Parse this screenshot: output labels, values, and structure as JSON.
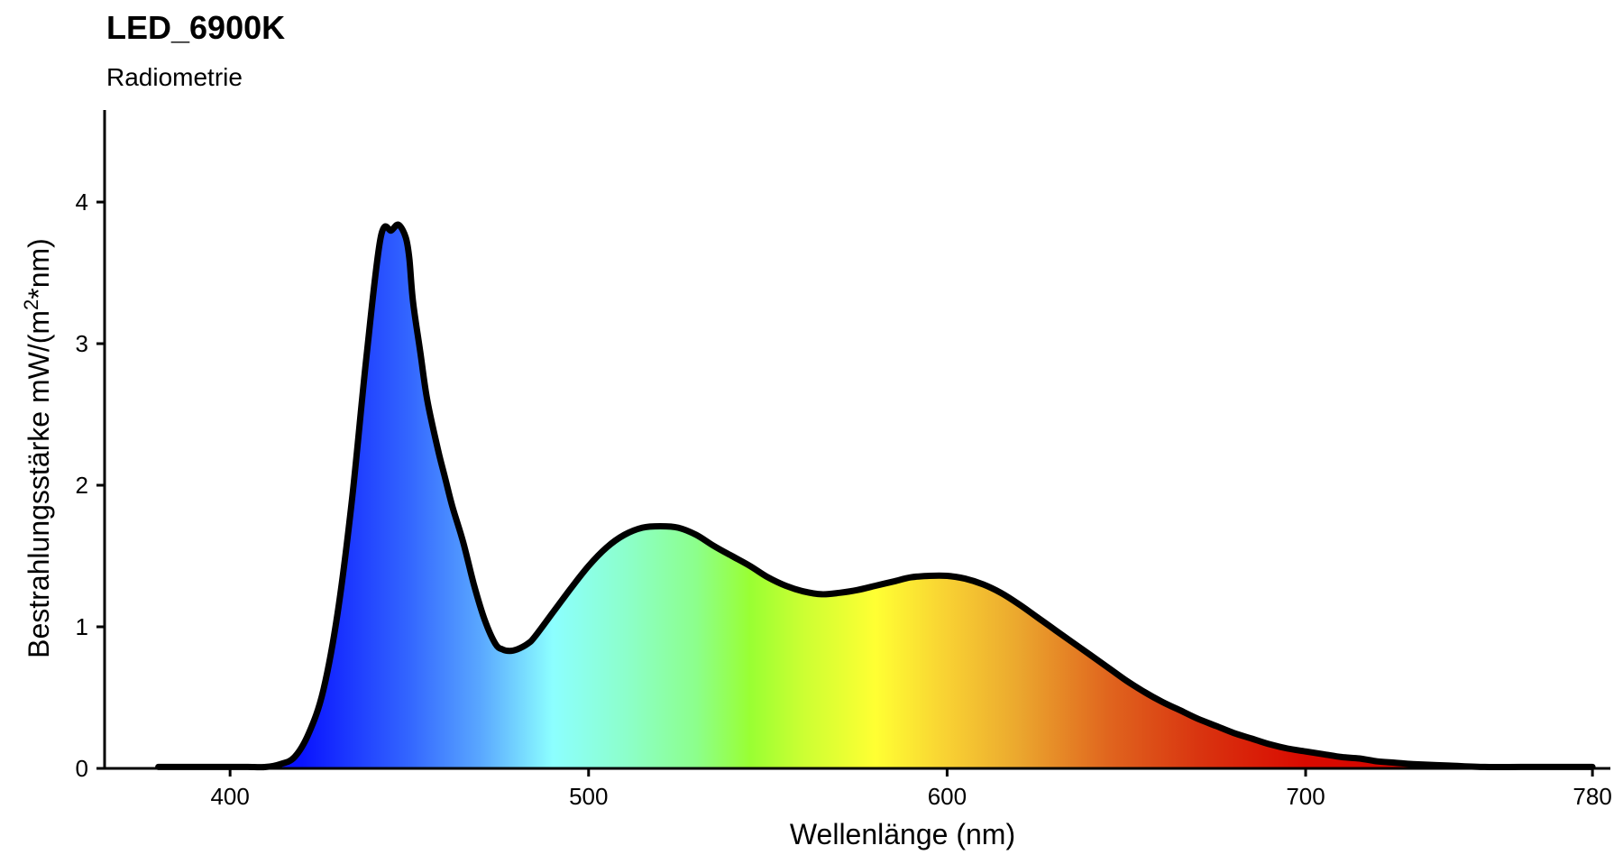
{
  "title": "LED_6900K",
  "subtitle": "Radiometrie",
  "chart_data": {
    "type": "area",
    "title": "LED_6900K",
    "subtitle": "Radiometrie",
    "xlabel": "Wellenlänge (nm)",
    "ylabel_main": "Bestrahlungsstärke  mW/(m",
    "ylabel_sup": "2",
    "ylabel_tail": "*nm)",
    "xlim": [
      365,
      785
    ],
    "ylim": [
      0,
      4.65
    ],
    "x_ticks": [
      400,
      500,
      600,
      700,
      780
    ],
    "y_ticks": [
      0,
      1,
      2,
      3,
      4
    ],
    "grid": false,
    "fill": "visible-spectrum gradient",
    "line_color": "#000000",
    "series": [
      {
        "x": [
          380,
          385,
          390,
          395,
          400,
          405,
          410,
          414,
          418,
          422,
          426,
          430,
          434,
          438,
          442,
          445,
          447,
          449,
          450,
          451,
          453,
          455,
          458,
          460,
          462,
          465,
          468,
          471,
          474,
          476,
          478,
          480,
          483,
          485,
          490,
          495,
          500,
          505,
          510,
          515,
          520,
          525,
          530,
          535,
          540,
          545,
          550,
          555,
          560,
          565,
          570,
          575,
          580,
          585,
          590,
          595,
          600,
          605,
          610,
          615,
          620,
          625,
          630,
          635,
          640,
          645,
          650,
          655,
          660,
          665,
          670,
          675,
          680,
          685,
          690,
          695,
          700,
          705,
          710,
          715,
          720,
          725,
          730,
          740,
          750,
          760,
          770,
          775,
          780
        ],
        "y": [
          0.01,
          0.01,
          0.01,
          0.01,
          0.01,
          0.01,
          0.01,
          0.03,
          0.08,
          0.25,
          0.55,
          1.1,
          1.9,
          2.9,
          3.75,
          3.8,
          3.84,
          3.75,
          3.6,
          3.3,
          2.95,
          2.6,
          2.25,
          2.05,
          1.85,
          1.6,
          1.3,
          1.05,
          0.88,
          0.84,
          0.83,
          0.84,
          0.88,
          0.93,
          1.1,
          1.27,
          1.43,
          1.56,
          1.65,
          1.7,
          1.71,
          1.7,
          1.65,
          1.57,
          1.5,
          1.43,
          1.35,
          1.29,
          1.25,
          1.23,
          1.24,
          1.26,
          1.29,
          1.32,
          1.35,
          1.36,
          1.36,
          1.34,
          1.3,
          1.24,
          1.16,
          1.07,
          0.98,
          0.89,
          0.8,
          0.71,
          0.62,
          0.54,
          0.47,
          0.41,
          0.35,
          0.3,
          0.25,
          0.21,
          0.17,
          0.14,
          0.12,
          0.1,
          0.08,
          0.07,
          0.05,
          0.04,
          0.03,
          0.02,
          0.01,
          0.01,
          0.01,
          0.01,
          0.01
        ]
      }
    ]
  }
}
